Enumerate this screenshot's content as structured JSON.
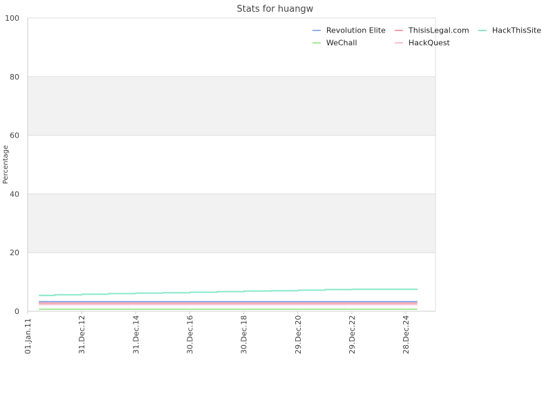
{
  "chart_data": {
    "type": "line",
    "title": "Stats for huangw",
    "xlabel": "",
    "ylabel": "Percentage",
    "ylim": [
      0,
      100
    ],
    "yticks": [
      0,
      20,
      40,
      60,
      80,
      100
    ],
    "xlim": [
      "2011-01-01",
      "2026-02-01"
    ],
    "xticks": [
      {
        "label": "01.Jan.11",
        "date": "2011-01-01"
      },
      {
        "label": "31.Dec.12",
        "date": "2012-12-31"
      },
      {
        "label": "31.Dec.14",
        "date": "2014-12-31"
      },
      {
        "label": "30.Dec.16",
        "date": "2016-12-30"
      },
      {
        "label": "30.Dec.18",
        "date": "2018-12-30"
      },
      {
        "label": "29.Dec.20",
        "date": "2020-12-29"
      },
      {
        "label": "29.Dec.22",
        "date": "2022-12-29"
      },
      {
        "label": "28.Dec.24",
        "date": "2024-12-28"
      }
    ],
    "grid": true,
    "legend_position": "top-right",
    "series": [
      {
        "name": "Revolution Elite",
        "color": "#90b0f0",
        "x": [
          "2011-06-01",
          "2025-06-01"
        ],
        "values": [
          3.3,
          3.3
        ]
      },
      {
        "name": "ThisisLegal.com",
        "color": "#f0a0a8",
        "x": [
          "2011-06-01",
          "2025-06-01"
        ],
        "values": [
          2.8,
          2.8
        ]
      },
      {
        "name": "HackThisSite",
        "color": "#88e8c8",
        "x": [
          "2011-06-01",
          "2012-01-01",
          "2013-01-01",
          "2014-01-01",
          "2015-01-01",
          "2016-01-01",
          "2017-01-01",
          "2018-01-01",
          "2019-01-01",
          "2020-01-01",
          "2021-01-01",
          "2022-01-01",
          "2023-01-01",
          "2024-01-01",
          "2025-06-01"
        ],
        "values": [
          5.4,
          5.6,
          5.8,
          6.0,
          6.2,
          6.3,
          6.5,
          6.7,
          6.9,
          7.0,
          7.2,
          7.4,
          7.5,
          7.5,
          7.6
        ]
      },
      {
        "name": "WeChall",
        "color": "#a8e898",
        "x": [
          "2011-06-01",
          "2025-06-01"
        ],
        "values": [
          0.7,
          0.7
        ]
      },
      {
        "name": "HackQuest",
        "color": "#f8c0d0",
        "x": [
          "2011-06-01",
          "2025-06-01"
        ],
        "values": [
          2.3,
          2.3
        ]
      }
    ]
  }
}
